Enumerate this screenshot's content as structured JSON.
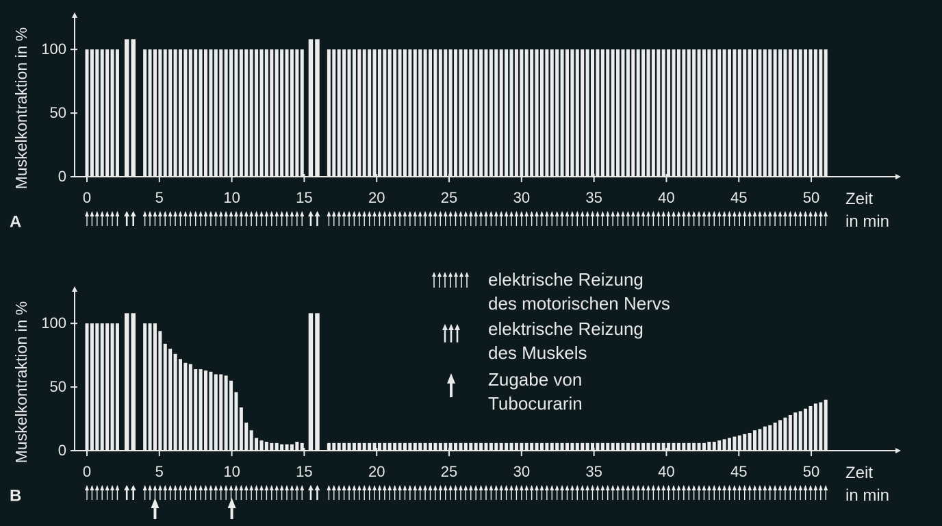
{
  "chart_data": [
    {
      "type": "bar",
      "label": "A",
      "ylabel": "Muskelkontraktion in %",
      "xlabel": "Zeit\nin min",
      "xlim": [
        0,
        56
      ],
      "ylim": [
        0,
        127
      ],
      "xticks": [
        0,
        5,
        10,
        15,
        20,
        25,
        30,
        35,
        40,
        45,
        50
      ],
      "yticks": [
        0,
        50,
        100
      ],
      "series": [
        {
          "color": "#ececec",
          "x": [
            0,
            0.35,
            0.7,
            1.05,
            1.4,
            1.75,
            2.1,
            4,
            4.35,
            4.7,
            5.05,
            5.4,
            5.75,
            6.1,
            6.45,
            6.8,
            7.15,
            7.5,
            7.85,
            8.2,
            8.55,
            8.9,
            9.25,
            9.6,
            9.95,
            10.3,
            10.65,
            11,
            11.35,
            11.7,
            12.05,
            12.4,
            12.75,
            13.1,
            13.45,
            13.8,
            14.15,
            14.5,
            14.85,
            16.7,
            17.05,
            17.4,
            17.75,
            18.1,
            18.45,
            18.8,
            19.15,
            19.5,
            19.85,
            20.2,
            20.55,
            20.9,
            21.25,
            21.6,
            21.95,
            22.3,
            22.65,
            23,
            23.35,
            23.7,
            24.05,
            24.4,
            24.75,
            25.1,
            25.45,
            25.8,
            26.15,
            26.5,
            26.85,
            27.2,
            27.55,
            27.9,
            28.25,
            28.6,
            28.95,
            29.3,
            29.65,
            30,
            30.35,
            30.7,
            31.05,
            31.4,
            31.75,
            32.1,
            32.45,
            32.8,
            33.15,
            33.5,
            33.85,
            34.2,
            34.55,
            34.9,
            35.25,
            35.6,
            35.95,
            36.3,
            36.65,
            37,
            37.35,
            37.7,
            38.05,
            38.4,
            38.75,
            39.1,
            39.45,
            39.8,
            40.15,
            40.5,
            40.85,
            41.2,
            41.55,
            41.9,
            42.25,
            42.6,
            42.95,
            43.3,
            43.65,
            44,
            44.35,
            44.7,
            45.05,
            45.4,
            45.75,
            46.1,
            46.45,
            46.8,
            47.15,
            47.5,
            47.85,
            48.2,
            48.55,
            48.9,
            49.25,
            49.6,
            49.95,
            50.3,
            50.65,
            51
          ],
          "values": [
            100,
            100,
            100,
            100,
            100,
            100,
            100,
            100,
            100,
            100,
            100,
            100,
            100,
            100,
            100,
            100,
            100,
            100,
            100,
            100,
            100,
            100,
            100,
            100,
            100,
            100,
            100,
            100,
            100,
            100,
            100,
            100,
            100,
            100,
            100,
            100,
            100,
            100,
            100,
            100,
            100,
            100,
            100,
            100,
            100,
            100,
            100,
            100,
            100,
            100,
            100,
            100,
            100,
            100,
            100,
            100,
            100,
            100,
            100,
            100,
            100,
            100,
            100,
            100,
            100,
            100,
            100,
            100,
            100,
            100,
            100,
            100,
            100,
            100,
            100,
            100,
            100,
            100,
            100,
            100,
            100,
            100,
            100,
            100,
            100,
            100,
            100,
            100,
            100,
            100,
            100,
            100,
            100,
            100,
            100,
            100,
            100,
            100,
            100,
            100,
            100,
            100,
            100,
            100,
            100,
            100,
            100,
            100,
            100,
            100,
            100,
            100,
            100,
            100,
            100,
            100,
            100,
            100,
            100,
            100,
            100,
            100,
            100,
            100,
            100,
            100,
            100,
            100,
            100,
            100,
            100,
            100,
            100,
            100,
            100,
            100,
            100,
            100
          ]
        },
        {
          "color": "#ececec",
          "x": [
            2.75,
            3.2,
            15.45,
            15.9
          ],
          "values": [
            108,
            108,
            108,
            108
          ]
        }
      ]
    },
    {
      "type": "bar",
      "label": "B",
      "ylabel": "Muskelkontraktion in %",
      "xlabel": "Zeit\nin min",
      "xlim": [
        0,
        56
      ],
      "ylim": [
        0,
        127
      ],
      "xticks": [
        0,
        5,
        10,
        15,
        20,
        25,
        30,
        35,
        40,
        45,
        50
      ],
      "yticks": [
        0,
        50,
        100
      ],
      "series": [
        {
          "name": "elektrische Reizung\ndes motorischen Nervs",
          "color": "#ececec",
          "x": [
            0,
            0.35,
            0.7,
            1.05,
            1.4,
            1.75,
            2.1,
            4,
            4.35,
            4.7,
            5.05,
            5.4,
            5.75,
            6.1,
            6.45,
            6.8,
            7.15,
            7.5,
            7.85,
            8.2,
            8.55,
            8.9,
            9.25,
            9.6,
            9.95,
            10.3,
            10.65,
            11,
            11.35,
            11.7,
            12.05,
            12.4,
            12.75,
            13.1,
            13.45,
            13.8,
            14.15,
            14.5,
            14.85,
            16.7,
            17.05,
            17.4,
            17.75,
            18.1,
            18.45,
            18.8,
            19.15,
            19.5,
            19.85,
            20.2,
            20.55,
            20.9,
            21.25,
            21.6,
            21.95,
            22.3,
            22.65,
            23,
            23.35,
            23.7,
            24.05,
            24.4,
            24.75,
            25.1,
            25.45,
            25.8,
            26.15,
            26.5,
            26.85,
            27.2,
            27.55,
            27.9,
            28.25,
            28.6,
            28.95,
            29.3,
            29.65,
            30,
            30.35,
            30.7,
            31.05,
            31.4,
            31.75,
            32.1,
            32.45,
            32.8,
            33.15,
            33.5,
            33.85,
            34.2,
            34.55,
            34.9,
            35.25,
            35.6,
            35.95,
            36.3,
            36.65,
            37,
            37.35,
            37.7,
            38.05,
            38.4,
            38.75,
            39.1,
            39.45,
            39.8,
            40.15,
            40.5,
            40.85,
            41.2,
            41.55,
            41.9,
            42.25,
            42.6,
            42.95,
            43.3,
            43.65,
            44,
            44.35,
            44.7,
            45.05,
            45.4,
            45.75,
            46.1,
            46.45,
            46.8,
            47.15,
            47.5,
            47.85,
            48.2,
            48.55,
            48.9,
            49.25,
            49.6,
            49.95,
            50.3,
            50.65,
            51
          ],
          "values": [
            100,
            100,
            100,
            100,
            100,
            100,
            100,
            100,
            100,
            100,
            94,
            84,
            80,
            76,
            72,
            69,
            68,
            64,
            64,
            63,
            62,
            60,
            60,
            59,
            55,
            46,
            34,
            22,
            16,
            10,
            8,
            7,
            6,
            6,
            5,
            5,
            5,
            7,
            6,
            6,
            6,
            6,
            6,
            6,
            6,
            6,
            6,
            6,
            6,
            6,
            6,
            6,
            6,
            6,
            6,
            6,
            6,
            6,
            6,
            6,
            6,
            6,
            6,
            6,
            6,
            6,
            6,
            6,
            6,
            6,
            6,
            6,
            6,
            6,
            6,
            6,
            6,
            6,
            6,
            6,
            6,
            6,
            6,
            6,
            6,
            6,
            6,
            6,
            6,
            6,
            6,
            6,
            6,
            6,
            6,
            6,
            6,
            6,
            6,
            6,
            6,
            6,
            6,
            6,
            6,
            6,
            6,
            6,
            6,
            6,
            6,
            6,
            6,
            6,
            7,
            7,
            8,
            9,
            10,
            11,
            12,
            13,
            14,
            16,
            17,
            19,
            20,
            22,
            24,
            26,
            28,
            30,
            31,
            33,
            35,
            37,
            38,
            40
          ]
        },
        {
          "name": "elektrische Reizung\ndes Muskels",
          "color": "#ececec",
          "x": [
            2.75,
            3.2,
            15.45,
            15.9
          ],
          "values": [
            108,
            108,
            108,
            108
          ]
        },
        {
          "name": "Zugabe von\nTubocurarin",
          "color": "#ececec",
          "x": [
            4.7,
            10
          ]
        }
      ]
    }
  ]
}
